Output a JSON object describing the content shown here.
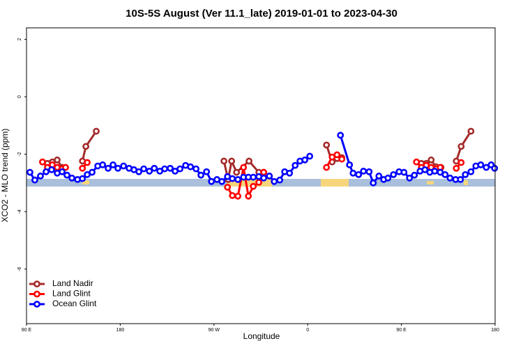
{
  "chart_data": {
    "type": "line",
    "title": "10S-5S August (Ver 11.1_late)   2019-01-01 to 2023-04-30",
    "x_label": "Longitude",
    "y_label": "XCO2 - MLO trend (ppm)",
    "xlim": [
      90,
      540
    ],
    "ylim": [
      -7.9,
      2.4
    ],
    "xticks": [
      {
        "value": 90,
        "label": "90 E"
      },
      {
        "value": 180,
        "label": "180"
      },
      {
        "value": 270,
        "label": "90 W"
      },
      {
        "value": 360,
        "label": "0"
      },
      {
        "value": 450,
        "label": "90 E"
      },
      {
        "value": 540,
        "label": "180"
      }
    ],
    "yticks": [
      -6,
      -4,
      -2,
      0,
      2
    ],
    "legend": "bottom-left",
    "series": [
      {
        "name": "Land Nadir",
        "color": "#a52a2a",
        "x": [
          105.4,
          110.1,
          114.8,
          119.5,
          124.2,
          null,
          143.7,
          147.0,
          157.0,
          null,
          279.6,
          283.6,
          287.0,
          291.7,
          303.7,
          313.1,
          317.8,
          323.2,
          null,
          378.1,
          383.5,
          388.2,
          392.8,
          null,
          469.2,
          473.9,
          478.6,
          483.3,
          488.0,
          null,
          502.7,
          507.4,
          516.8
        ],
        "values": [
          -2.27,
          -2.32,
          -2.27,
          -2.2,
          -2.46,
          null,
          -2.24,
          -1.73,
          -1.2,
          null,
          -2.24,
          -2.88,
          -2.24,
          -2.63,
          -2.24,
          -2.63,
          -2.63,
          -2.76,
          null,
          -1.68,
          -2.27,
          -2.15,
          -2.12,
          null,
          -2.32,
          -2.32,
          -2.2,
          -2.44,
          -2.46,
          null,
          -2.24,
          -1.73,
          -1.2
        ]
      },
      {
        "name": "Land Glint",
        "color": "#ff0000",
        "x": [
          105.4,
          110.1,
          114.8,
          119.5,
          124.2,
          127.5,
          null,
          143.7,
          148.3,
          null,
          283.0,
          287.7,
          293.0,
          298.4,
          303.1,
          307.8,
          313.1,
          317.8,
          null,
          378.1,
          383.5,
          388.2,
          392.8,
          null,
          464.5,
          469.2,
          473.9,
          478.6,
          483.3,
          487.3,
          null,
          502.7,
          507.4
        ],
        "values": [
          -2.27,
          -2.46,
          -2.37,
          -2.46,
          -2.51,
          -2.46,
          null,
          -2.49,
          -2.29,
          null,
          -3.15,
          -3.44,
          -3.46,
          -2.46,
          -3.46,
          -3.12,
          -2.98,
          -2.63,
          null,
          -2.46,
          -2.1,
          -2.02,
          -2.17,
          null,
          -2.27,
          -2.46,
          -2.39,
          -2.46,
          -2.51,
          -2.46,
          null,
          -2.49,
          -2.29
        ]
      },
      {
        "name": "Ocean Glint",
        "color": "#0000ff",
        "x": [
          93.3,
          98.0,
          103.4,
          108.8,
          114.1,
          119.5,
          124.2,
          128.9,
          133.6,
          139.0,
          143.7,
          148.3,
          153.0,
          158.4,
          163.1,
          168.4,
          173.1,
          177.8,
          183.2,
          188.5,
          193.2,
          197.9,
          202.6,
          208.0,
          212.7,
          218.0,
          222.7,
          228.0,
          232.7,
          237.4,
          242.8,
          247.5,
          252.8,
          257.5,
          262.9,
          267.6,
          272.9,
          277.6,
          283.0,
          287.7,
          293.0,
          298.4,
          303.1,
          307.8,
          313.1,
          317.8,
          323.2,
          327.9,
          333.2,
          337.9,
          342.6,
          348.0,
          352.6,
          357.3,
          362.0,
          null,
          391.5,
          400.2,
          403.6,
          408.9,
          413.6,
          419.0,
          423.0,
          428.4,
          433.0,
          437.1,
          442.4,
          447.8,
          452.5,
          457.8,
          462.5,
          467.9,
          472.6,
          477.3,
          482.0,
          487.3,
          492.0,
          496.7,
          502.1,
          506.7,
          511.4,
          516.8,
          521.5,
          526.2,
          531.5,
          536.2,
          539.5
        ],
        "values": [
          -2.63,
          -2.9,
          -2.76,
          -2.61,
          -2.54,
          -2.66,
          -2.61,
          -2.73,
          -2.83,
          -2.88,
          -2.85,
          -2.71,
          -2.63,
          -2.41,
          -2.37,
          -2.49,
          -2.37,
          -2.49,
          -2.41,
          -2.49,
          -2.54,
          -2.61,
          -2.51,
          -2.59,
          -2.49,
          -2.59,
          -2.51,
          -2.49,
          -2.59,
          -2.51,
          -2.39,
          -2.44,
          -2.51,
          -2.73,
          -2.61,
          -2.95,
          -2.88,
          -2.95,
          -2.78,
          -2.85,
          -2.88,
          -2.8,
          -2.8,
          -2.8,
          -2.78,
          -2.83,
          -2.76,
          -2.95,
          -2.9,
          -2.61,
          -2.66,
          -2.39,
          -2.24,
          -2.2,
          -2.07,
          null,
          -1.34,
          -2.37,
          -2.66,
          -2.71,
          -2.59,
          -2.61,
          -3.0,
          -2.76,
          -2.88,
          -2.83,
          -2.71,
          -2.61,
          -2.63,
          -2.83,
          -2.73,
          -2.59,
          -2.54,
          -2.63,
          -2.59,
          -2.63,
          -2.71,
          -2.83,
          -2.88,
          -2.88,
          -2.71,
          -2.61,
          -2.41,
          -2.37,
          -2.46,
          -2.37,
          -2.49
        ]
      }
    ]
  }
}
